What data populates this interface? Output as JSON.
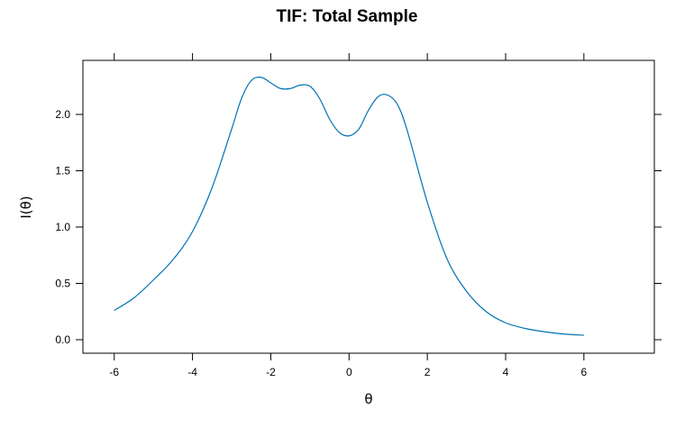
{
  "chart_data": {
    "type": "line",
    "title": "TIF: Total Sample",
    "xlabel": "θ",
    "ylabel": "I(θ)",
    "xlim": [
      -6.8,
      7.8
    ],
    "ylim": [
      -0.12,
      2.48
    ],
    "x_ticks": [
      -6,
      -4,
      -2,
      0,
      2,
      4,
      6
    ],
    "x_tick_labels": [
      "-6",
      "-4",
      "-2",
      "0",
      "2",
      "4",
      "6"
    ],
    "y_ticks": [
      0.0,
      0.5,
      1.0,
      1.5,
      2.0
    ],
    "y_tick_labels": [
      "0.0",
      "0.5",
      "1.0",
      "1.5",
      "2.0"
    ],
    "grid": false,
    "legend": "none",
    "line_color": "#0072b2",
    "series": [
      {
        "x": [
          -6.0,
          -5.5,
          -5.0,
          -4.5,
          -4.0,
          -3.5,
          -3.0,
          -2.75,
          -2.5,
          -2.25,
          -2.0,
          -1.75,
          -1.5,
          -1.25,
          -1.0,
          -0.75,
          -0.5,
          -0.25,
          0.0,
          0.25,
          0.5,
          0.75,
          1.0,
          1.25,
          1.5,
          2.0,
          2.5,
          3.0,
          3.5,
          4.0,
          4.5,
          5.0,
          5.5,
          6.0
        ],
        "y": [
          0.26,
          0.37,
          0.53,
          0.71,
          0.96,
          1.35,
          1.87,
          2.14,
          2.3,
          2.33,
          2.28,
          2.23,
          2.23,
          2.26,
          2.25,
          2.14,
          1.96,
          1.84,
          1.81,
          1.87,
          2.04,
          2.16,
          2.17,
          2.08,
          1.84,
          1.22,
          0.72,
          0.43,
          0.25,
          0.15,
          0.1,
          0.07,
          0.05,
          0.04
        ]
      }
    ]
  }
}
